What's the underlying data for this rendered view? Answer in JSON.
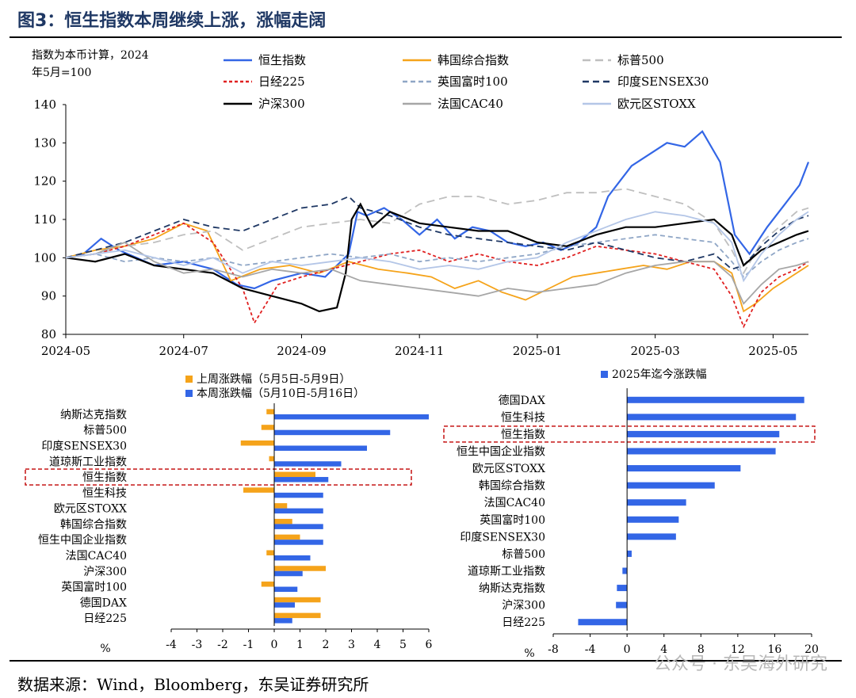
{
  "title": "图3：恒生指数本周继续上涨，涨幅走阔",
  "source": "数据来源：Wind，Bloomberg，东吴证券研究所",
  "watermark": "公众号 · 东吴海外研究",
  "colors": {
    "blue": "#3366e6",
    "orange": "#f5a31a",
    "red": "#e02020",
    "black": "#000000",
    "gray": "#a6a6a6",
    "lightgray": "#bfbfbf",
    "steel": "#8fa6c6",
    "navy": "#1f3864",
    "silver": "#b4c6e7",
    "border": "#c00000"
  },
  "chart_data": [
    {
      "type": "line",
      "note": "指数为本币计算，2024年5月=100",
      "note_lines": [
        "指数为本币计算，2024",
        "年5月=100"
      ],
      "ylim": [
        80,
        140
      ],
      "yticks": [
        80,
        90,
        100,
        110,
        120,
        130,
        140
      ],
      "xticks": [
        "2024-05",
        "2024-07",
        "2024-09",
        "2024-11",
        "2025-01",
        "2025-03",
        "2025-05"
      ],
      "xrange_months": [
        0,
        12.6
      ],
      "series": [
        {
          "name": "恒生指数",
          "color": "#3366e6",
          "dash": "",
          "x": [
            0,
            0.3,
            0.6,
            0.9,
            1.2,
            1.5,
            2,
            2.5,
            2.9,
            3.2,
            3.5,
            4,
            4.4,
            4.8,
            4.95,
            5.1,
            5.4,
            5.7,
            6,
            6.3,
            6.6,
            6.9,
            7.2,
            7.5,
            7.8,
            8.1,
            8.4,
            8.7,
            9,
            9.2,
            9.4,
            9.6,
            9.9,
            10.2,
            10.5,
            10.8,
            11.1,
            11.35,
            11.6,
            11.9,
            12.2,
            12.45,
            12.6
          ],
          "y": [
            100,
            101,
            105,
            102,
            100,
            98,
            99,
            97,
            93,
            92,
            94,
            96,
            95,
            101,
            112,
            111,
            113,
            110,
            106,
            110,
            105,
            108,
            107,
            104,
            103,
            104,
            102,
            104,
            108,
            116,
            120,
            124,
            127,
            130,
            129,
            133,
            125,
            106,
            101,
            108,
            114,
            119,
            125
          ]
        },
        {
          "name": "韩国综合指数",
          "color": "#f5a31a",
          "dash": "",
          "x": [
            0,
            0.5,
            1,
            1.5,
            2,
            2.4,
            2.8,
            3.3,
            3.8,
            4.3,
            4.8,
            5.3,
            5.8,
            6.2,
            6.6,
            7,
            7.4,
            7.8,
            8.2,
            8.6,
            9,
            9.4,
            9.8,
            10.2,
            10.6,
            11,
            11.3,
            11.5,
            11.7,
            12,
            12.3,
            12.6
          ],
          "y": [
            100,
            102,
            103,
            105,
            109,
            107,
            94,
            97,
            98,
            96,
            99,
            97,
            96,
            95,
            92,
            94,
            91,
            89,
            92,
            95,
            96,
            97,
            98,
            97,
            99,
            99,
            96,
            86,
            88,
            92,
            95,
            98
          ]
        },
        {
          "name": "标普500",
          "color": "#bfbfbf",
          "dash": "10,6",
          "x": [
            0,
            0.5,
            1,
            1.5,
            2,
            2.5,
            3,
            3.5,
            4,
            4.5,
            5,
            5.5,
            6,
            6.5,
            7,
            7.5,
            8,
            8.5,
            9,
            9.5,
            10,
            10.5,
            11,
            11.3,
            11.5,
            11.8,
            12.1,
            12.4,
            12.6
          ],
          "y": [
            100,
            101,
            103,
            104,
            106,
            107,
            102,
            105,
            108,
            109,
            110,
            109,
            114,
            116,
            116,
            114,
            115,
            117,
            117,
            118,
            116,
            114,
            109,
            102,
            96,
            104,
            108,
            112,
            113
          ]
        },
        {
          "name": "日经225",
          "color": "#e02020",
          "dash": "4,3",
          "x": [
            0,
            0.5,
            1,
            1.5,
            2,
            2.5,
            3,
            3.2,
            3.6,
            4,
            4.5,
            5,
            5.5,
            6,
            6.5,
            7,
            7.5,
            8,
            8.5,
            9,
            9.5,
            10,
            10.5,
            11,
            11.3,
            11.5,
            11.8,
            12.1,
            12.4,
            12.6
          ],
          "y": [
            100,
            101,
            103,
            106,
            109,
            104,
            92,
            83,
            93,
            95,
            97,
            99,
            101,
            102,
            99,
            101,
            99,
            98,
            100,
            103,
            102,
            101,
            99,
            97,
            90,
            82,
            91,
            95,
            97,
            99
          ]
        },
        {
          "name": "英国富时100",
          "color": "#8fa6c6",
          "dash": "6,4",
          "x": [
            0,
            0.5,
            1,
            1.5,
            2,
            2.5,
            3,
            3.5,
            4,
            4.5,
            5,
            5.5,
            6,
            6.5,
            7,
            7.5,
            8,
            8.5,
            9,
            9.5,
            10,
            10.5,
            11,
            11.3,
            11.5,
            11.8,
            12.1,
            12.4,
            12.6
          ],
          "y": [
            100,
            101,
            99,
            100,
            99,
            100,
            98,
            99,
            100,
            101,
            100,
            101,
            99,
            100,
            99,
            100,
            101,
            103,
            104,
            105,
            106,
            105,
            104,
            99,
            95,
            99,
            102,
            104,
            105
          ]
        },
        {
          "name": "印度SENSEX30",
          "color": "#1f3864",
          "dash": "8,5",
          "x": [
            0,
            0.5,
            1,
            1.5,
            2,
            2.5,
            3,
            3.5,
            4,
            4.5,
            4.8,
            5,
            5.5,
            6,
            6.5,
            7,
            7.5,
            8,
            8.5,
            9,
            9.5,
            10,
            10.5,
            11,
            11.3,
            11.5,
            11.8,
            12.1,
            12.4,
            12.6
          ],
          "y": [
            100,
            102,
            104,
            107,
            110,
            108,
            107,
            110,
            113,
            114,
            116,
            113,
            111,
            108,
            106,
            105,
            104,
            103,
            102,
            104,
            102,
            100,
            99,
            101,
            97,
            98,
            103,
            107,
            110,
            111
          ]
        },
        {
          "name": "沪深300",
          "color": "#000000",
          "dash": "",
          "x": [
            0,
            0.5,
            1,
            1.5,
            2,
            2.5,
            3,
            3.5,
            4,
            4.3,
            4.6,
            4.75,
            4.85,
            5,
            5.2,
            5.5,
            6,
            6.5,
            7,
            7.5,
            8,
            8.5,
            9,
            9.5,
            10,
            10.5,
            11,
            11.3,
            11.5,
            11.8,
            12.1,
            12.4,
            12.6
          ],
          "y": [
            100,
            99,
            101,
            98,
            97,
            96,
            92,
            90,
            88,
            86,
            87,
            96,
            110,
            114,
            108,
            112,
            109,
            108,
            107,
            107,
            104,
            103,
            106,
            108,
            108,
            109,
            110,
            106,
            98,
            102,
            104,
            106,
            107
          ]
        },
        {
          "name": "法国CAC40",
          "color": "#a6a6a6",
          "dash": "",
          "x": [
            0,
            0.5,
            1,
            1.5,
            2,
            2.5,
            3,
            3.5,
            4,
            4.5,
            5,
            5.5,
            6,
            6.5,
            7,
            7.5,
            8,
            8.5,
            9,
            9.5,
            10,
            10.5,
            11,
            11.3,
            11.5,
            11.8,
            12.1,
            12.4,
            12.6
          ],
          "y": [
            100,
            101,
            104,
            99,
            96,
            97,
            95,
            97,
            96,
            97,
            94,
            93,
            92,
            91,
            90,
            92,
            91,
            92,
            93,
            96,
            98,
            99,
            99,
            95,
            88,
            93,
            97,
            98,
            99
          ]
        },
        {
          "name": "欧元区STOXX",
          "color": "#b4c6e7",
          "dash": "",
          "x": [
            0,
            0.5,
            1,
            1.5,
            2,
            2.5,
            3,
            3.5,
            4,
            4.5,
            5,
            5.5,
            6,
            6.5,
            7,
            7.5,
            8,
            8.5,
            9,
            9.5,
            10,
            10.5,
            11,
            11.3,
            11.5,
            11.8,
            12.1,
            12.4,
            12.6
          ],
          "y": [
            100,
            101,
            102,
            100,
            98,
            100,
            96,
            99,
            98,
            99,
            100,
            99,
            97,
            98,
            97,
            99,
            100,
            104,
            107,
            110,
            112,
            111,
            109,
            104,
            94,
            101,
            106,
            110,
            112
          ]
        }
      ]
    },
    {
      "type": "bar",
      "orientation": "horizontal",
      "categories": [
        "纳斯达克指数",
        "标普500",
        "印度SENSEX30",
        "道琼斯工业指数",
        "恒生指数",
        "恒生科技",
        "欧元区STOXX",
        "韩国综合指数",
        "恒生中国企业指数",
        "法国CAC40",
        "沪深300",
        "英国富时100",
        "德国DAX",
        "日经225"
      ],
      "series": [
        {
          "name": "上周涨跌幅（5月5日-5月9日）",
          "color": "#f5a31a",
          "values": [
            -0.3,
            -0.5,
            -1.3,
            -0.2,
            1.6,
            -1.2,
            0.5,
            0.7,
            1.0,
            -0.3,
            2.0,
            -0.5,
            1.8,
            1.8
          ]
        },
        {
          "name": "本周涨跌幅（5月10日-5月16日）",
          "color": "#3366e6",
          "values": [
            6.0,
            4.5,
            3.6,
            2.6,
            2.1,
            1.9,
            1.9,
            1.9,
            1.9,
            1.4,
            1.1,
            0.9,
            0.8,
            0.7
          ]
        }
      ],
      "highlight": "恒生指数",
      "xlim": [
        -4,
        6
      ],
      "xticks": [
        -4,
        -3,
        -2,
        -1,
        0,
        1,
        2,
        3,
        4,
        5,
        6
      ],
      "xlabel": "%"
    },
    {
      "type": "bar",
      "orientation": "horizontal",
      "categories": [
        "德国DAX",
        "恒生科技",
        "恒生指数",
        "恒生中国企业指数",
        "欧元区STOXX",
        "韩国综合指数",
        "法国CAC40",
        "英国富时100",
        "印度SENSEX30",
        "标普500",
        "道琼斯工业指数",
        "纳斯达克指数",
        "沪深300",
        "日经225"
      ],
      "series": [
        {
          "name": "2025年迄今涨跌幅",
          "color": "#3366e6",
          "values": [
            19.2,
            18.3,
            16.5,
            16.1,
            12.3,
            9.5,
            6.4,
            5.6,
            5.3,
            0.5,
            -0.5,
            -1.1,
            -1.2,
            -5.3
          ]
        }
      ],
      "highlight": "恒生指数",
      "xlim": [
        -8,
        20
      ],
      "xticks": [
        -8,
        -4,
        0,
        4,
        8,
        12,
        16,
        20
      ],
      "xlabel": "%"
    }
  ]
}
